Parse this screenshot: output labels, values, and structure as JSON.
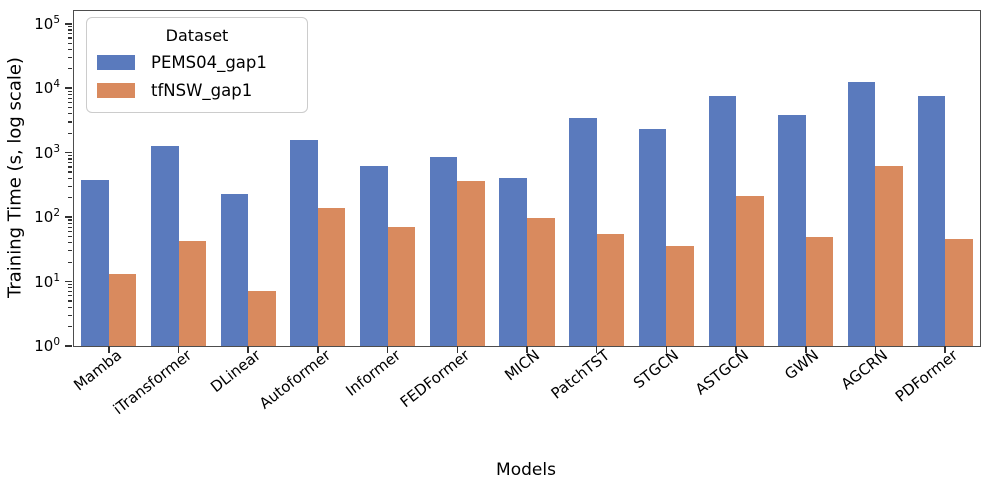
{
  "chart_data": {
    "type": "bar",
    "title": "",
    "xlabel": "Models",
    "ylabel": "Training Time (s, log scale)",
    "y_scale": "log",
    "ylim": [
      1,
      158000
    ],
    "y_tick_exponents": [
      0,
      1,
      2,
      3,
      4,
      5
    ],
    "grid": false,
    "legend_title": "Dataset",
    "legend_position": "upper-left",
    "categories": [
      "Mamba",
      "iTransformer",
      "DLinear",
      "Autoformer",
      "Informer",
      "FEDFormer",
      "MICN",
      "PatchTST",
      "STGCN",
      "ASTGCN",
      "GWN",
      "AGCRN",
      "PDFormer"
    ],
    "series": [
      {
        "name": "PEMS04_gap1",
        "color": "#5a7abd",
        "values": [
          375,
          1250,
          230,
          1550,
          620,
          860,
          400,
          3500,
          2300,
          7500,
          3900,
          12500,
          7600
        ]
      },
      {
        "name": "tfNSW_gap1",
        "color": "#d98a5e",
        "values": [
          13,
          43,
          7.2,
          140,
          71,
          365,
          98,
          54,
          36,
          215,
          49,
          630,
          46
        ]
      }
    ]
  }
}
